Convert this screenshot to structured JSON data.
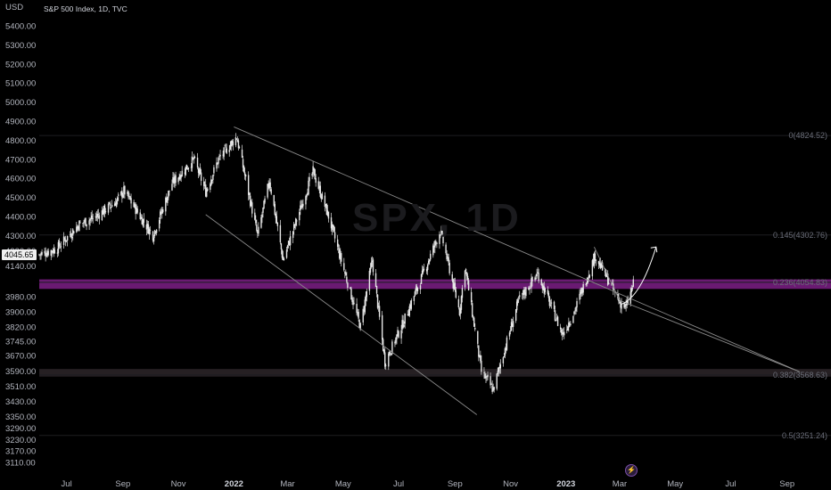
{
  "header": {
    "currency": "USD",
    "title": "S&P 500 Index, 1D, TVC"
  },
  "watermark": "SPX, 1D",
  "price_badge": "4045.65",
  "colors": {
    "background": "#000000",
    "candle": "#e6e6e6",
    "highlight_band": "#7d1f86",
    "support_band": "#2a2327",
    "trendline": "#8a8a8a",
    "text": "#b2b5be"
  },
  "icons": {
    "event_marker": "lightning-icon"
  },
  "chart_data": {
    "type": "candlestick",
    "ylabel": "USD",
    "ylim": [
      3050,
      5470
    ],
    "y_ticks": [
      5400,
      5300,
      5200,
      5100,
      5000,
      4900,
      4800,
      4700,
      4600,
      4500,
      4400,
      4300,
      4220,
      4140,
      3980,
      3900,
      3820,
      3745,
      3670,
      3590,
      3510,
      3430,
      3350,
      3290,
      3230,
      3170,
      3110
    ],
    "y_tick_labels": [
      "5400.00",
      "5300.00",
      "5200.00",
      "5100.00",
      "5000.00",
      "4900.00",
      "4800.00",
      "4700.00",
      "4600.00",
      "4500.00",
      "4400.00",
      "4300.00",
      "4220.00",
      "4140.00",
      "3980.00",
      "3900.00",
      "3820.00",
      "3745.00",
      "3670.00",
      "3590.00",
      "3510.00",
      "3430.00",
      "3350.00",
      "3290.00",
      "3230.00",
      "3170.00",
      "3110.00"
    ],
    "x_ticks": [
      {
        "label": "Jul",
        "date": "2021-07-01",
        "bold": false
      },
      {
        "label": "Sep",
        "date": "2021-09-01",
        "bold": false
      },
      {
        "label": "Nov",
        "date": "2021-11-01",
        "bold": false
      },
      {
        "label": "2022",
        "date": "2022-01-01",
        "bold": true
      },
      {
        "label": "Mar",
        "date": "2022-03-01",
        "bold": false
      },
      {
        "label": "May",
        "date": "2022-05-01",
        "bold": false
      },
      {
        "label": "Jul",
        "date": "2022-07-01",
        "bold": false
      },
      {
        "label": "Sep",
        "date": "2022-09-01",
        "bold": false
      },
      {
        "label": "Nov",
        "date": "2022-11-01",
        "bold": false
      },
      {
        "label": "2023",
        "date": "2023-01-01",
        "bold": true
      },
      {
        "label": "Mar",
        "date": "2023-03-01",
        "bold": false
      },
      {
        "label": "May",
        "date": "2023-05-01",
        "bold": false
      },
      {
        "label": "Jul",
        "date": "2023-07-01",
        "bold": false
      },
      {
        "label": "Sep",
        "date": "2023-09-01",
        "bold": false
      }
    ],
    "price_path": [
      [
        "2021-06-01",
        4200
      ],
      [
        "2021-06-20",
        4230
      ],
      [
        "2021-07-15",
        4360
      ],
      [
        "2021-08-01",
        4395
      ],
      [
        "2021-08-25",
        4480
      ],
      [
        "2021-09-02",
        4535
      ],
      [
        "2021-09-20",
        4400
      ],
      [
        "2021-10-04",
        4300
      ],
      [
        "2021-10-25",
        4575
      ],
      [
        "2021-11-18",
        4700
      ],
      [
        "2021-12-01",
        4530
      ],
      [
        "2021-12-15",
        4700
      ],
      [
        "2022-01-04",
        4818
      ],
      [
        "2022-01-27",
        4300
      ],
      [
        "2022-02-09",
        4590
      ],
      [
        "2022-02-24",
        4170
      ],
      [
        "2022-03-29",
        4637
      ],
      [
        "2022-04-15",
        4400
      ],
      [
        "2022-05-20",
        3820
      ],
      [
        "2022-06-02",
        4170
      ],
      [
        "2022-06-16",
        3636
      ],
      [
        "2022-07-05",
        3830
      ],
      [
        "2022-08-16",
        4325
      ],
      [
        "2022-09-06",
        3900
      ],
      [
        "2022-09-12",
        4140
      ],
      [
        "2022-09-30",
        3585
      ],
      [
        "2022-10-13",
        3491
      ],
      [
        "2022-11-10",
        3960
      ],
      [
        "2022-12-01",
        4100
      ],
      [
        "2022-12-28",
        3783
      ],
      [
        "2023-01-10",
        3900
      ],
      [
        "2023-02-02",
        4195
      ],
      [
        "2023-03-01",
        3950
      ],
      [
        "2023-03-08",
        3920
      ],
      [
        "2023-03-16",
        4045.65
      ]
    ],
    "fib_levels": [
      {
        "label": "0(4824.52)",
        "value": 4824.52
      },
      {
        "label": "0.145(4302.76)",
        "value": 4302.76
      },
      {
        "label": "0.236(4054.83)",
        "value": 4054.83
      },
      {
        "label": "0.382(3568.63)",
        "value": 3568.63
      },
      {
        "label": "0.5(3251.24)",
        "value": 3251.24
      }
    ],
    "zones": [
      {
        "from": 4020,
        "to": 4070,
        "color": "#7d1f86"
      },
      {
        "from": 3560,
        "to": 3600,
        "color": "#2a2327"
      }
    ],
    "trendlines": [
      [
        [
          "2022-01-01",
          4870
        ],
        [
          "2023-09-15",
          3585
        ]
      ],
      [
        [
          "2021-12-01",
          4410
        ],
        [
          "2022-09-25",
          3360
        ]
      ],
      [
        [
          "2023-02-01",
          4240
        ],
        [
          "2023-03-01",
          3960
        ]
      ],
      [
        [
          "2023-03-01",
          3960
        ],
        [
          "2023-09-15",
          3585
        ]
      ]
    ],
    "projection": [
      [
        "2023-03-03",
        3940
      ],
      [
        "2023-03-20",
        3970
      ],
      [
        "2023-04-01",
        4100
      ],
      [
        "2023-04-10",
        4240
      ]
    ]
  }
}
